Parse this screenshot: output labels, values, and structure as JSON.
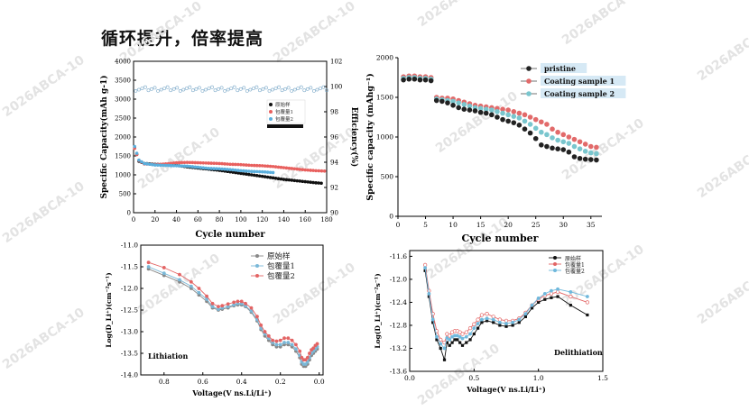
{
  "page": {
    "title": "循环提升，倍率提高",
    "watermark": "2026ABCA-10"
  },
  "chart_data": [
    {
      "id": "cycle",
      "type": "scatter",
      "title": "",
      "xlabel": "Cycle number",
      "ylabel": "Specific Capacity(mAh g-1)",
      "y2label": "Efficiency(%)",
      "xlim": [
        0,
        180
      ],
      "ylim": [
        0,
        4000
      ],
      "y2lim": [
        90,
        102
      ],
      "xticks": [
        0,
        20,
        40,
        60,
        80,
        100,
        120,
        140,
        160,
        180
      ],
      "yticks": [
        0,
        500,
        1000,
        1500,
        2000,
        2500,
        3000,
        3500,
        4000
      ],
      "y2ticks": [
        90,
        92,
        94,
        96,
        98,
        100,
        102
      ],
      "legend": [
        "原始样",
        "包覆量1",
        "包覆量2"
      ],
      "legend_position": "right-middle",
      "series": [
        {
          "name": "原始样",
          "color": "#111111",
          "x": [
            1,
            5,
            10,
            20,
            30,
            40,
            50,
            60,
            70,
            80,
            90,
            100,
            110,
            120,
            130,
            140,
            150,
            160,
            170,
            175
          ],
          "values": [
            1720,
            1360,
            1300,
            1280,
            1270,
            1250,
            1210,
            1180,
            1150,
            1120,
            1080,
            1040,
            1000,
            960,
            920,
            880,
            850,
            820,
            790,
            780
          ]
        },
        {
          "name": "包覆量1",
          "color": "#e8605e",
          "x": [
            1,
            5,
            10,
            20,
            30,
            40,
            50,
            60,
            70,
            80,
            90,
            100,
            110,
            120,
            130,
            140,
            150,
            160,
            170,
            178
          ],
          "values": [
            1700,
            1380,
            1290,
            1270,
            1290,
            1320,
            1330,
            1320,
            1310,
            1300,
            1280,
            1270,
            1250,
            1240,
            1220,
            1190,
            1160,
            1130,
            1110,
            1100
          ]
        },
        {
          "name": "包覆量2",
          "color": "#5aaedc",
          "x": [
            1,
            5,
            10,
            20,
            30,
            40,
            50,
            60,
            70,
            80,
            90,
            100,
            110,
            120,
            130
          ],
          "values": [
            1750,
            1390,
            1300,
            1260,
            1250,
            1240,
            1230,
            1200,
            1170,
            1160,
            1140,
            1110,
            1090,
            1080,
            1060
          ]
        }
      ],
      "efficiency": {
        "x": [
          2,
          180
        ],
        "values": [
          99.8,
          99.8
        ],
        "color": "#7aa8c8"
      }
    },
    {
      "id": "rate",
      "type": "line",
      "xlabel": "Cycle number",
      "ylabel": "Specific capacity (mAhg⁻¹)",
      "xlim": [
        0,
        37
      ],
      "ylim": [
        0,
        2000
      ],
      "xticks": [
        0,
        5,
        10,
        15,
        20,
        25,
        30,
        35
      ],
      "yticks": [
        0,
        500,
        1000,
        1500,
        2000
      ],
      "legend": [
        "pristine",
        "Coating sample 1",
        "Coating sample 2"
      ],
      "legend_position": "top-right",
      "x": [
        1,
        2,
        3,
        4,
        5,
        6,
        7,
        8,
        9,
        10,
        11,
        12,
        13,
        14,
        15,
        16,
        17,
        18,
        19,
        20,
        21,
        22,
        23,
        24,
        25,
        26,
        27,
        28,
        29,
        30,
        31,
        32,
        33,
        34,
        35,
        36
      ],
      "series": [
        {
          "name": "pristine",
          "color": "#222222",
          "values": [
            1720,
            1730,
            1730,
            1720,
            1720,
            1710,
            1460,
            1450,
            1430,
            1400,
            1370,
            1350,
            1340,
            1330,
            1310,
            1300,
            1280,
            1250,
            1220,
            1200,
            1180,
            1150,
            1100,
            1050,
            980,
            900,
            880,
            860,
            850,
            840,
            810,
            750,
            730,
            720,
            715,
            710
          ]
        },
        {
          "name": "Coating sample 1",
          "color": "#e26a6a",
          "values": [
            1760,
            1770,
            1770,
            1760,
            1760,
            1750,
            1500,
            1490,
            1490,
            1480,
            1460,
            1440,
            1420,
            1400,
            1390,
            1380,
            1370,
            1360,
            1350,
            1340,
            1320,
            1300,
            1280,
            1250,
            1220,
            1190,
            1160,
            1100,
            1060,
            1030,
            1000,
            970,
            940,
            910,
            880,
            870
          ]
        },
        {
          "name": "Coating sample 2",
          "color": "#7ac6ce",
          "values": [
            1740,
            1750,
            1750,
            1740,
            1740,
            1730,
            1480,
            1470,
            1460,
            1450,
            1430,
            1410,
            1390,
            1370,
            1360,
            1350,
            1340,
            1320,
            1300,
            1280,
            1260,
            1240,
            1200,
            1160,
            1110,
            1060,
            1030,
            990,
            960,
            940,
            920,
            880,
            850,
            820,
            800,
            790
          ]
        }
      ]
    },
    {
      "id": "lith",
      "type": "line",
      "xlabel": "Voltage(V ns.Li/Li⁺)",
      "ylabel": "Log(D_Li⁺)(cm⁻²s⁻¹)",
      "annotation": "Lithiation",
      "xlim": [
        0.92,
        -0.02
      ],
      "ylim": [
        -14.0,
        -11.0
      ],
      "xticks": [
        0.8,
        0.6,
        0.4,
        0.2,
        0.0
      ],
      "xticklabels": [
        "0.8",
        "0.6",
        "0.4",
        "0.2",
        "0.0"
      ],
      "yticks": [
        -11.0,
        -11.5,
        -12.0,
        -12.5,
        -13.0,
        -13.5,
        -14.0
      ],
      "yticklabels": [
        "-11.0",
        "-11.5",
        "-12.0",
        "-12.5",
        "-13.0",
        "-13.5",
        "-14.0"
      ],
      "legend": [
        "原始样",
        "包覆量1",
        "包覆量2"
      ],
      "legend_position": "top-right",
      "x": [
        0.88,
        0.8,
        0.72,
        0.66,
        0.62,
        0.58,
        0.55,
        0.52,
        0.5,
        0.47,
        0.44,
        0.42,
        0.4,
        0.38,
        0.35,
        0.32,
        0.3,
        0.28,
        0.26,
        0.24,
        0.22,
        0.2,
        0.18,
        0.16,
        0.14,
        0.12,
        0.1,
        0.09,
        0.08,
        0.07,
        0.06,
        0.05,
        0.04,
        0.03,
        0.02,
        0.01
      ],
      "series": [
        {
          "name": "原始样",
          "color": "#888888",
          "values": [
            -11.55,
            -11.7,
            -11.85,
            -12.0,
            -12.15,
            -12.3,
            -12.45,
            -12.5,
            -12.48,
            -12.45,
            -12.4,
            -12.38,
            -12.38,
            -12.42,
            -12.55,
            -12.75,
            -12.95,
            -13.1,
            -13.2,
            -13.3,
            -13.35,
            -13.35,
            -13.3,
            -13.3,
            -13.35,
            -13.45,
            -13.6,
            -13.75,
            -13.8,
            -13.8,
            -13.75,
            -13.65,
            -13.55,
            -13.5,
            -13.45,
            -13.4
          ]
        },
        {
          "name": "包覆量1",
          "color": "#7ab8d8",
          "values": [
            -11.5,
            -11.65,
            -11.8,
            -11.95,
            -12.1,
            -12.25,
            -12.42,
            -12.48,
            -12.45,
            -12.42,
            -12.38,
            -12.35,
            -12.35,
            -12.4,
            -12.52,
            -12.72,
            -12.92,
            -13.05,
            -13.15,
            -13.25,
            -13.3,
            -13.3,
            -13.25,
            -13.25,
            -13.3,
            -13.4,
            -13.55,
            -13.7,
            -13.75,
            -13.75,
            -13.7,
            -13.6,
            -13.5,
            -13.45,
            -13.4,
            -13.35
          ]
        },
        {
          "name": "包覆量2",
          "color": "#e36464",
          "values": [
            -11.4,
            -11.52,
            -11.68,
            -11.85,
            -12.0,
            -12.18,
            -12.35,
            -12.42,
            -12.4,
            -12.36,
            -12.32,
            -12.3,
            -12.3,
            -12.35,
            -12.45,
            -12.65,
            -12.85,
            -13.0,
            -13.1,
            -13.2,
            -13.22,
            -13.2,
            -13.15,
            -13.15,
            -13.2,
            -13.3,
            -13.45,
            -13.6,
            -13.65,
            -13.65,
            -13.6,
            -13.5,
            -13.42,
            -13.38,
            -13.32,
            -13.28
          ]
        }
      ]
    },
    {
      "id": "delith",
      "type": "line",
      "xlabel": "Voltage(V ns.Li/Li⁺)",
      "ylabel": "Log(D_Li⁺)(cm⁻²s⁻¹)",
      "annotation": "Delithiation",
      "xlim": [
        0.0,
        1.5
      ],
      "ylim": [
        -13.6,
        -11.5
      ],
      "xticks": [
        0.0,
        0.5,
        1.0,
        1.5
      ],
      "xticklabels": [
        "0.0",
        "0.5",
        "1.0",
        "1.5"
      ],
      "yticks": [
        -11.6,
        -12.0,
        -12.4,
        -12.8,
        -13.2,
        -13.6
      ],
      "yticklabels": [
        "-11.6",
        "-12.0",
        "-12.4",
        "-12.8",
        "-13.2",
        "-13.6"
      ],
      "legend": [
        "原始样",
        "包覆量1",
        "包覆量2"
      ],
      "legend_position": "top-right",
      "x": [
        0.12,
        0.15,
        0.18,
        0.21,
        0.24,
        0.27,
        0.29,
        0.31,
        0.33,
        0.35,
        0.37,
        0.39,
        0.41,
        0.44,
        0.47,
        0.5,
        0.53,
        0.56,
        0.6,
        0.65,
        0.7,
        0.75,
        0.8,
        0.85,
        0.9,
        0.95,
        1.0,
        1.05,
        1.1,
        1.15,
        1.25,
        1.38
      ],
      "series": [
        {
          "name": "原始样",
          "color": "#111111",
          "values": [
            -11.85,
            -12.3,
            -12.75,
            -13.05,
            -13.2,
            -13.4,
            -13.1,
            -13.15,
            -13.1,
            -13.05,
            -13.05,
            -13.1,
            -13.15,
            -13.1,
            -13.05,
            -12.95,
            -12.85,
            -12.75,
            -12.72,
            -12.75,
            -12.8,
            -12.82,
            -12.8,
            -12.75,
            -12.65,
            -12.5,
            -12.4,
            -12.35,
            -12.32,
            -12.3,
            -12.45,
            -12.62
          ]
        },
        {
          "name": "包覆量1",
          "color": "#e36464",
          "values": [
            -11.75,
            -12.2,
            -12.6,
            -12.9,
            -13.05,
            -13.1,
            -12.95,
            -12.98,
            -12.92,
            -12.9,
            -12.9,
            -12.92,
            -12.95,
            -12.92,
            -12.85,
            -12.78,
            -12.7,
            -12.62,
            -12.6,
            -12.65,
            -12.7,
            -12.72,
            -12.72,
            -12.68,
            -12.58,
            -12.45,
            -12.35,
            -12.28,
            -12.25,
            -12.22,
            -12.3,
            -12.4
          ]
        },
        {
          "name": "包覆量2",
          "color": "#6fb8dc",
          "values": [
            -11.8,
            -12.25,
            -12.7,
            -13.0,
            -13.12,
            -13.2,
            -13.02,
            -13.05,
            -13.0,
            -12.98,
            -12.98,
            -13.0,
            -13.03,
            -13.0,
            -12.95,
            -12.85,
            -12.77,
            -12.7,
            -12.68,
            -12.7,
            -12.75,
            -12.77,
            -12.75,
            -12.7,
            -12.6,
            -12.45,
            -12.33,
            -12.25,
            -12.2,
            -12.17,
            -12.22,
            -12.3
          ]
        }
      ]
    }
  ]
}
